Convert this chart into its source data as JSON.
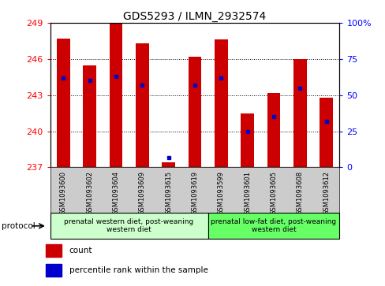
{
  "title": "GDS5293 / ILMN_2932574",
  "samples": [
    "GSM1093600",
    "GSM1093602",
    "GSM1093604",
    "GSM1093609",
    "GSM1093615",
    "GSM1093619",
    "GSM1093599",
    "GSM1093601",
    "GSM1093605",
    "GSM1093608",
    "GSM1093612"
  ],
  "count_values": [
    247.7,
    245.5,
    249.0,
    247.3,
    237.4,
    246.2,
    247.6,
    241.5,
    243.2,
    246.0,
    242.8
  ],
  "percentile_values": [
    62,
    60,
    63,
    57,
    7,
    57,
    62,
    25,
    35,
    55,
    32
  ],
  "ylim": [
    237,
    249
  ],
  "y2lim": [
    0,
    100
  ],
  "yticks": [
    237,
    240,
    243,
    246,
    249
  ],
  "y2ticks": [
    0,
    25,
    50,
    75,
    100
  ],
  "bar_color": "#cc0000",
  "blue_color": "#0000cc",
  "group1_label": "prenatal western diet, post-weaning\nwestern diet",
  "group2_label": "prenatal low-fat diet, post-weaning\nwestern diet",
  "group1_count": 6,
  "group2_count": 5,
  "group1_color": "#ccffcc",
  "group2_color": "#66ff66",
  "sample_bg_color": "#cccccc",
  "legend_count_label": "count",
  "legend_pct_label": "percentile rank within the sample",
  "protocol_label": "protocol"
}
